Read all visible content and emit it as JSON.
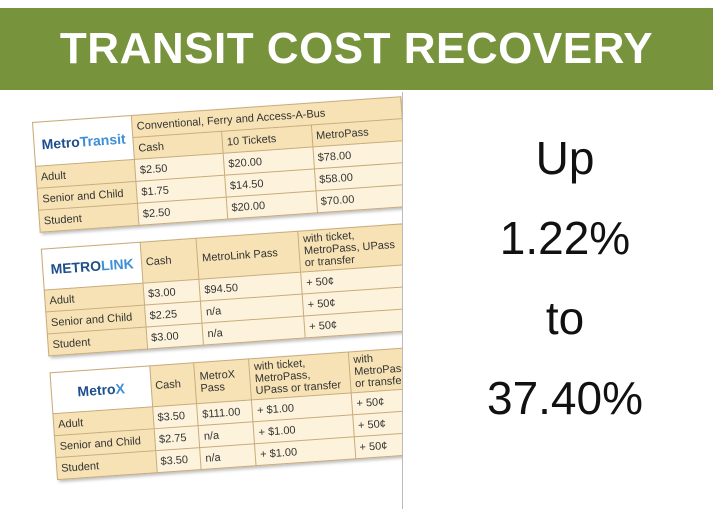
{
  "header": {
    "title": "TRANSIT COST RECOVERY"
  },
  "fare_tables": [
    {
      "logo": [
        "Metro",
        "Transit"
      ],
      "group": "Conventional, Ferry and Access-A-Bus",
      "columns": [
        "Cash",
        "10 Tickets",
        "MetroPass"
      ],
      "rows": [
        [
          "Adult",
          "$2.50",
          "$20.00",
          "$78.00"
        ],
        [
          "Senior and Child",
          "$1.75",
          "$14.50",
          "$58.00"
        ],
        [
          "Student",
          "$2.50",
          "$20.00",
          "$70.00"
        ]
      ]
    },
    {
      "logo": [
        "METRO",
        "LINK"
      ],
      "columns": [
        "Cash",
        "MetroLink Pass",
        "with ticket, MetroPass, UPass or transfer"
      ],
      "rows": [
        [
          "Adult",
          "$3.00",
          "$94.50",
          "+ 50¢"
        ],
        [
          "Senior and Child",
          "$2.25",
          "n/a",
          "+ 50¢"
        ],
        [
          "Student",
          "$3.00",
          "n/a",
          "+ 50¢"
        ]
      ]
    },
    {
      "logo": [
        "Metro",
        "X"
      ],
      "columns": [
        "Cash",
        "MetroX Pass",
        "with ticket, MetroPass, UPass or transfer",
        "with MetroPass or transfer"
      ],
      "rows": [
        [
          "Adult",
          "$3.50",
          "$111.00",
          "+ $1.00",
          "+ 50¢"
        ],
        [
          "Senior and Child",
          "$2.75",
          "n/a",
          "+ $1.00",
          "+ 50¢"
        ],
        [
          "Student",
          "$3.50",
          "n/a",
          "+ $1.00",
          "+ 50¢"
        ]
      ]
    }
  ],
  "statement": [
    "Up",
    "1.22%",
    "to",
    "37.40%"
  ]
}
